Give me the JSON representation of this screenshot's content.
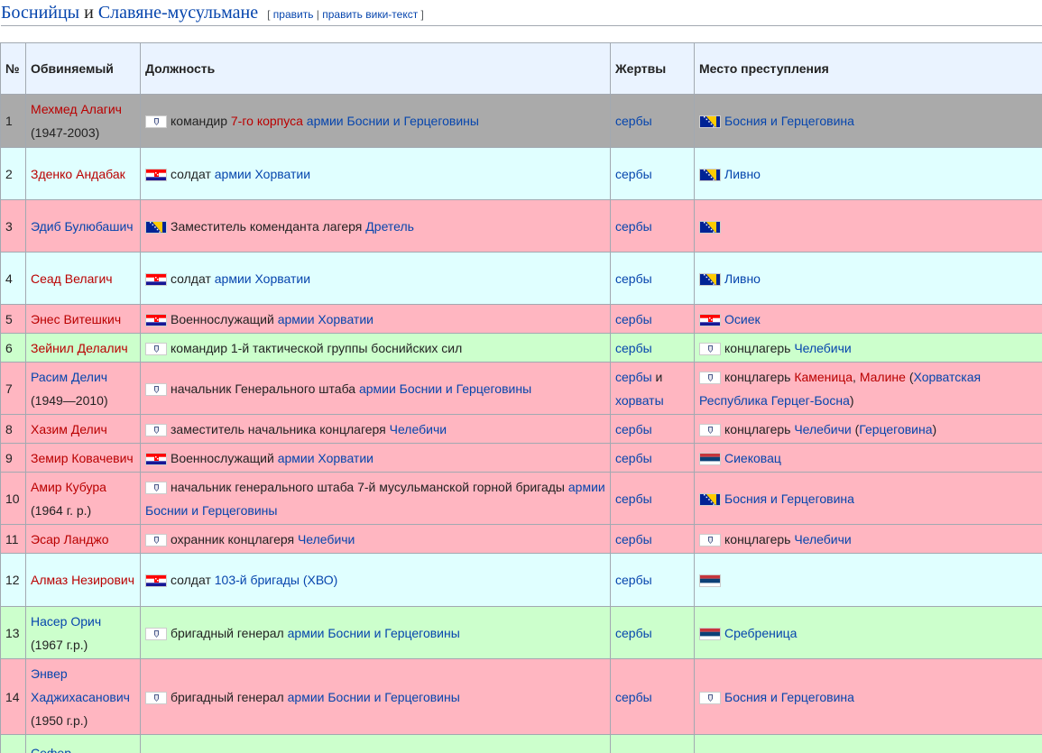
{
  "heading": {
    "title": [
      {
        "text": "Боснийцы",
        "color": "#0645ad"
      },
      {
        "text": " и "
      },
      {
        "text": "Славяне-мусульмане",
        "color": "#0645ad"
      }
    ],
    "edit": [
      {
        "text": "[ ",
        "color": "#54595d"
      },
      {
        "text": "править",
        "color": "#0645ad"
      },
      {
        "text": " | ",
        "color": "#54595d"
      },
      {
        "text": "править вики-текст",
        "color": "#0645ad"
      },
      {
        "text": " ]",
        "color": "#54595d"
      }
    ]
  },
  "table": {
    "header": [
      "№",
      "Обвиняемый",
      "Должность",
      "Жертвы",
      "Место преступления"
    ],
    "rows": [
      {
        "bg": "#aaaaaa",
        "no": "1",
        "accused": [
          {
            "text": "Мехмед Алагич",
            "color": "#ba0000"
          }
        ],
        "years": "(1947-2003)",
        "post": {
          "flag": "army",
          "segs": [
            {
              "text": "командир "
            },
            {
              "text": "7-го корпуса",
              "color": "#ba0000"
            },
            {
              "text": " "
            },
            {
              "text": "армии Боснии и Герцеговины",
              "color": "#0645ad"
            }
          ]
        },
        "victims": [
          {
            "text": "сербы",
            "color": "#0645ad"
          }
        ],
        "place": {
          "flag": "bih",
          "segs": [
            {
              "text": "Босния и Герцеговина",
              "color": "#0645ad"
            }
          ]
        }
      },
      {
        "bg": "#e0ffff",
        "no": "2",
        "accused": [
          {
            "text": "Зденко Андабак",
            "color": "#ba0000"
          }
        ],
        "post": {
          "flag": "hr",
          "segs": [
            {
              "text": "солдат "
            },
            {
              "text": "армии Хорватии",
              "color": "#0645ad"
            }
          ]
        },
        "victims": [
          {
            "text": "сербы",
            "color": "#0645ad"
          }
        ],
        "place": {
          "flag": "bih",
          "segs": [
            {
              "text": "Ливно",
              "color": "#0645ad"
            }
          ]
        }
      },
      {
        "bg": "#ffb6c1",
        "no": "3",
        "accused": [
          {
            "text": "Эдиб Булюбашич",
            "color": "#0645ad"
          }
        ],
        "post": {
          "flag": "bih",
          "segs": [
            {
              "text": "Заместитель коменданта лагеря "
            },
            {
              "text": "Дретель",
              "color": "#0645ad"
            }
          ]
        },
        "victims": [
          {
            "text": "сербы",
            "color": "#0645ad"
          }
        ],
        "place": {
          "flag": "bih",
          "segs": []
        }
      },
      {
        "bg": "#e0ffff",
        "no": "4",
        "accused": [
          {
            "text": "Сеад Велагич",
            "color": "#ba0000"
          }
        ],
        "post": {
          "flag": "hr",
          "segs": [
            {
              "text": "солдат "
            },
            {
              "text": "армии Хорватии",
              "color": "#0645ad"
            }
          ]
        },
        "victims": [
          {
            "text": "сербы",
            "color": "#0645ad"
          }
        ],
        "place": {
          "flag": "bih",
          "segs": [
            {
              "text": "Ливно",
              "color": "#0645ad"
            }
          ]
        }
      },
      {
        "bg": "#ffb6c1",
        "no": "5",
        "accused": [
          {
            "text": "Энес Витешкич",
            "color": "#ba0000"
          }
        ],
        "post": {
          "flag": "hr",
          "segs": [
            {
              "text": "Военнослужащий "
            },
            {
              "text": "армии Хорватии",
              "color": "#0645ad"
            }
          ]
        },
        "victims": [
          {
            "text": "сербы",
            "color": "#0645ad"
          }
        ],
        "place": {
          "flag": "hr",
          "segs": [
            {
              "text": "Осиек",
              "color": "#0645ad"
            }
          ]
        }
      },
      {
        "bg": "#ccffcc",
        "no": "6",
        "accused": [
          {
            "text": "Зейнил Делалич",
            "color": "#ba0000"
          }
        ],
        "post": {
          "flag": "army",
          "segs": [
            {
              "text": "командир 1-й тактической группы боснийских сил"
            }
          ]
        },
        "victims": [
          {
            "text": "сербы",
            "color": "#0645ad"
          }
        ],
        "place": {
          "flag": "army",
          "segs": [
            {
              "text": "концлагерь "
            },
            {
              "text": "Челебичи",
              "color": "#0645ad"
            }
          ]
        }
      },
      {
        "bg": "#ffb6c1",
        "no": "7",
        "accused": [
          {
            "text": "Расим Делич",
            "color": "#0645ad"
          }
        ],
        "years": "(1949—2010)",
        "post": {
          "flag": "army",
          "segs": [
            {
              "text": "начальник Генерального штаба "
            },
            {
              "text": "армии Боснии и Герцеговины",
              "color": "#0645ad"
            }
          ]
        },
        "victims": [
          {
            "text": "сербы",
            "color": "#0645ad"
          },
          {
            "text": " и "
          },
          {
            "text": "хорваты",
            "color": "#0645ad"
          }
        ],
        "place": {
          "flag": "army",
          "segs": [
            {
              "text": "концлагерь "
            },
            {
              "text": "Каменица",
              "color": "#ba0000"
            },
            {
              "text": ", "
            },
            {
              "text": "Малине",
              "color": "#ba0000"
            },
            {
              "text": " ("
            },
            {
              "text": "Хорватская Республика Герцег-Босна",
              "color": "#0645ad"
            },
            {
              "text": ")"
            }
          ]
        }
      },
      {
        "bg": "#ffb6c1",
        "no": "8",
        "accused": [
          {
            "text": "Хазим Делич",
            "color": "#ba0000"
          }
        ],
        "post": {
          "flag": "army",
          "segs": [
            {
              "text": "заместитель начальника концлагеря "
            },
            {
              "text": "Челебичи",
              "color": "#0645ad"
            }
          ]
        },
        "victims": [
          {
            "text": "сербы",
            "color": "#0645ad"
          }
        ],
        "place": {
          "flag": "army",
          "segs": [
            {
              "text": "концлагерь "
            },
            {
              "text": "Челебичи",
              "color": "#0645ad"
            },
            {
              "text": " ("
            },
            {
              "text": "Герцеговина",
              "color": "#0645ad"
            },
            {
              "text": ")"
            }
          ]
        }
      },
      {
        "bg": "#ffb6c1",
        "no": "9",
        "accused": [
          {
            "text": "Земир Ковачевич",
            "color": "#ba0000"
          }
        ],
        "post": {
          "flag": "hr",
          "segs": [
            {
              "text": "Военнослужащий "
            },
            {
              "text": "армии Хорватии",
              "color": "#0645ad"
            }
          ]
        },
        "victims": [
          {
            "text": "сербы",
            "color": "#0645ad"
          }
        ],
        "place": {
          "flag": "srb",
          "segs": [
            {
              "text": "Сиековац",
              "color": "#0645ad"
            }
          ]
        }
      },
      {
        "bg": "#ffb6c1",
        "no": "10",
        "accused": [
          {
            "text": "Амир Кубура",
            "color": "#ba0000"
          }
        ],
        "years": "(1964 г. р.)",
        "post": {
          "flag": "army",
          "segs": [
            {
              "text": "начальник генерального штаба 7-й мусульманской горной бригады "
            },
            {
              "text": "армии Боснии и Герцеговины",
              "color": "#0645ad"
            }
          ]
        },
        "victims": [
          {
            "text": "сербы",
            "color": "#0645ad"
          }
        ],
        "place": {
          "flag": "bih",
          "segs": [
            {
              "text": "Босния и Герцеговина",
              "color": "#0645ad"
            }
          ]
        }
      },
      {
        "bg": "#ffb6c1",
        "no": "11",
        "accused": [
          {
            "text": "Эсар Ланджо",
            "color": "#ba0000"
          }
        ],
        "post": {
          "flag": "army",
          "segs": [
            {
              "text": "охранник концлагеря "
            },
            {
              "text": "Челебичи",
              "color": "#0645ad"
            }
          ]
        },
        "victims": [
          {
            "text": "сербы",
            "color": "#0645ad"
          }
        ],
        "place": {
          "flag": "army",
          "segs": [
            {
              "text": "концлагерь "
            },
            {
              "text": "Челебичи",
              "color": "#0645ad"
            }
          ]
        }
      },
      {
        "bg": "#e0ffff",
        "no": "12",
        "accused": [
          {
            "text": "Алмаз Незирович",
            "color": "#ba0000"
          }
        ],
        "post": {
          "flag": "hr",
          "segs": [
            {
              "text": "солдат "
            },
            {
              "text": "103-й бригады (ХВО)",
              "color": "#0645ad"
            }
          ]
        },
        "victims": [
          {
            "text": "сербы",
            "color": "#0645ad"
          }
        ],
        "place": {
          "flag": "srb",
          "segs": []
        }
      },
      {
        "bg": "#ccffcc",
        "no": "13",
        "accused": [
          {
            "text": "Насер Орич",
            "color": "#0645ad"
          }
        ],
        "years": "(1967 г.р.)",
        "post": {
          "flag": "army",
          "segs": [
            {
              "text": "бригадный генерал "
            },
            {
              "text": "армии Боснии и Герцеговины",
              "color": "#0645ad"
            }
          ]
        },
        "victims": [
          {
            "text": "сербы",
            "color": "#0645ad"
          }
        ],
        "place": {
          "flag": "srb",
          "segs": [
            {
              "text": "Сребреница",
              "color": "#0645ad"
            }
          ]
        }
      },
      {
        "bg": "#ffb6c1",
        "no": "14",
        "accused": [
          {
            "text": "Энвер Хаджихасанович",
            "color": "#0645ad"
          }
        ],
        "years": "(1950 г.р.)",
        "post": {
          "flag": "army",
          "segs": [
            {
              "text": "бригадный генерал "
            },
            {
              "text": "армии Боснии и Герцеговины",
              "color": "#0645ad"
            }
          ]
        },
        "victims": [
          {
            "text": "сербы",
            "color": "#0645ad"
          }
        ],
        "place": {
          "flag": "army",
          "segs": [
            {
              "text": "Босния и Герцеговина",
              "color": "#0645ad"
            }
          ]
        }
      },
      {
        "bg": "#ccffcc",
        "accused": [
          {
            "text": "Сефер",
            "color": "#0645ad"
          }
        ]
      }
    ]
  }
}
